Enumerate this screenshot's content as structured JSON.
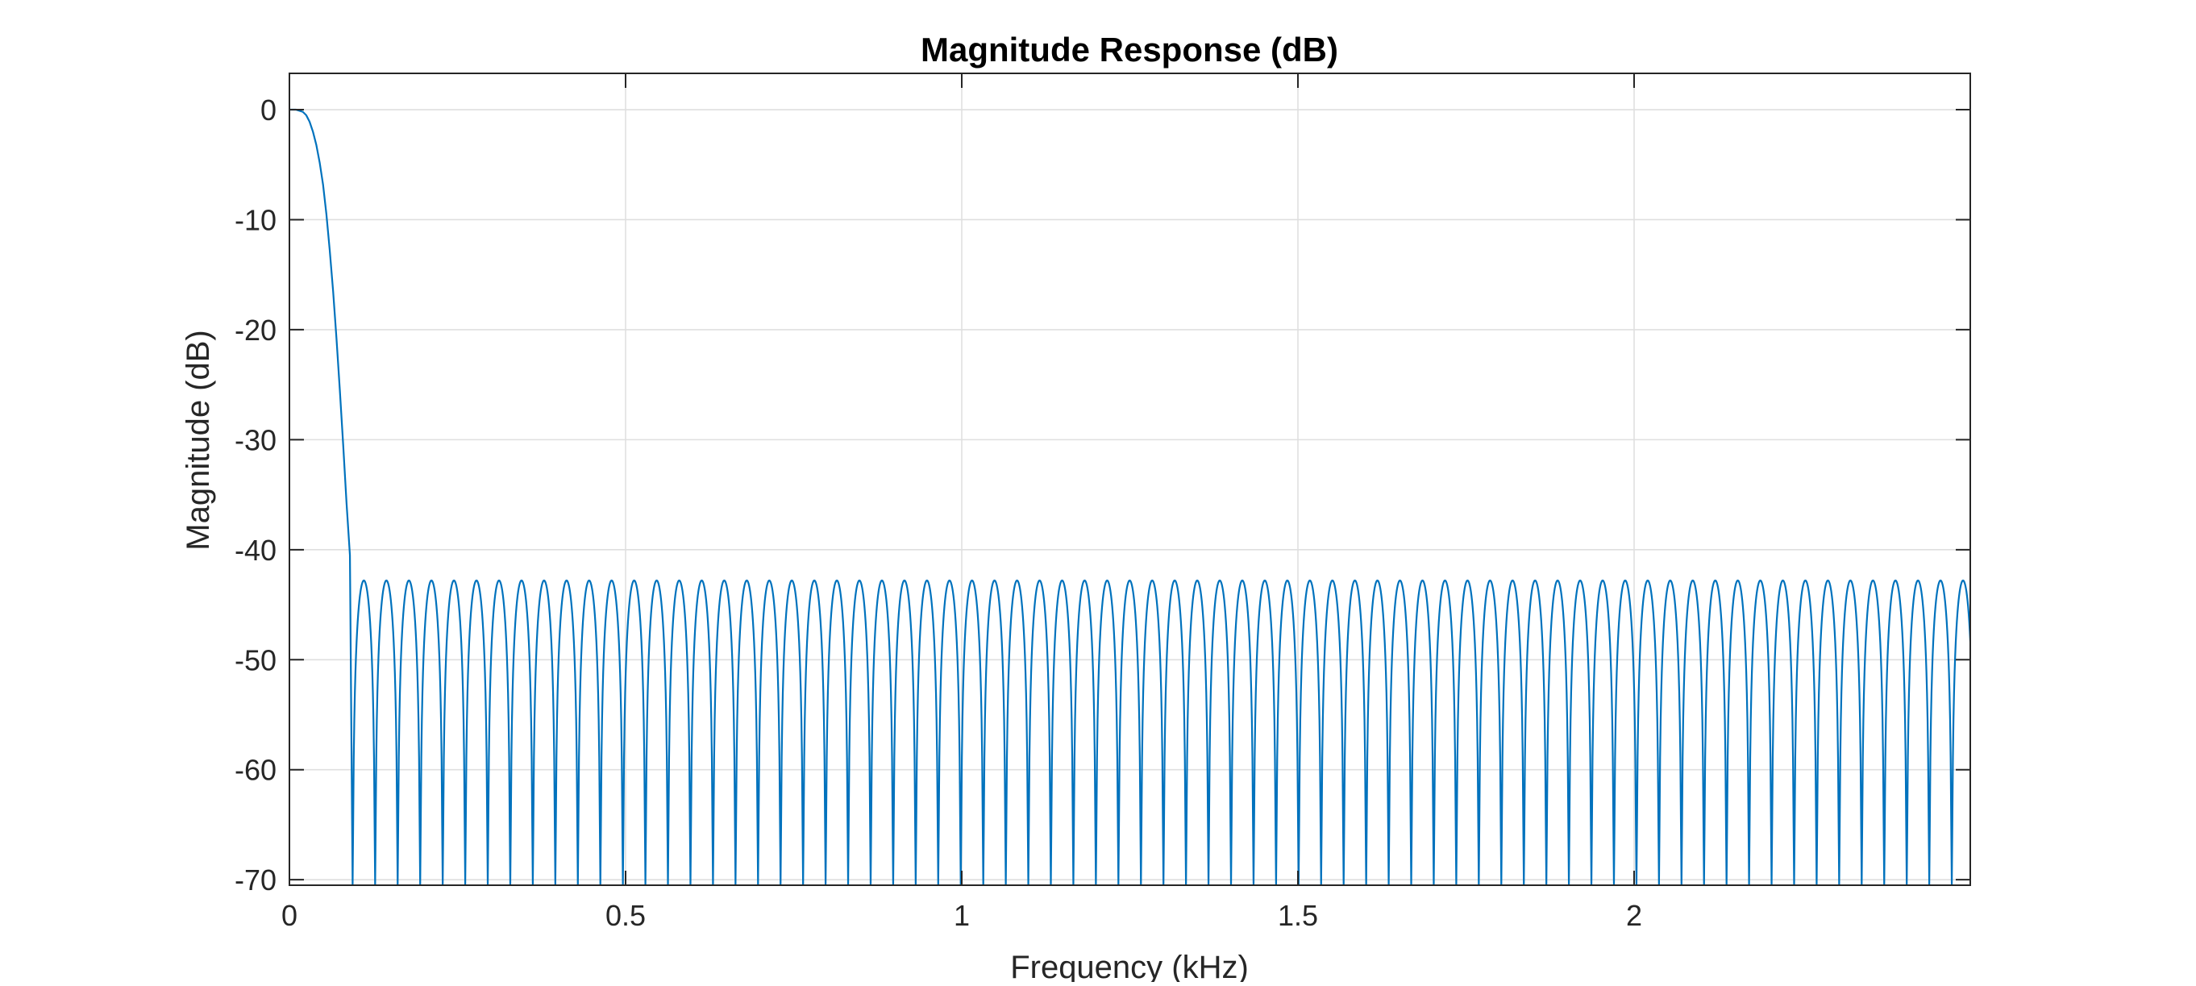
{
  "chart_data": {
    "type": "line",
    "title": "Magnitude Response (dB)",
    "xlabel": "Frequency (kHz)",
    "ylabel": "Magnitude (dB)",
    "xlim": [
      0,
      2.5
    ],
    "ylim": [
      -70.5,
      3.3
    ],
    "xticks": [
      0,
      0.5,
      1,
      1.5,
      2
    ],
    "xtick_labels": [
      "0",
      "0.5",
      "1",
      "1.5",
      "2"
    ],
    "yticks": [
      0,
      -10,
      -20,
      -30,
      -40,
      -50,
      -60,
      -70
    ],
    "ytick_labels": [
      "0",
      "-10",
      "-20",
      "-30",
      "-40",
      "-50",
      "-60",
      "-70"
    ],
    "grid": true,
    "legend": "none",
    "series": [
      {
        "color": "#0072BD",
        "passband": {
          "x": [
            0,
            0.01,
            0.02,
            0.025,
            0.03,
            0.035,
            0.04,
            0.045,
            0.05,
            0.055,
            0.06,
            0.065,
            0.07,
            0.075,
            0.08,
            0.085,
            0.09,
            0.094
          ],
          "y": [
            0,
            0,
            -0.2,
            -0.5,
            -1.1,
            -2.0,
            -3.2,
            -4.8,
            -6.8,
            -9.5,
            -12.8,
            -16.5,
            -20.8,
            -25.5,
            -30.5,
            -35.8,
            -40.5,
            -70.5
          ]
        },
        "stopband": {
          "first_null_khz": 0.094,
          "null_spacing_khz": 0.0335,
          "lobe_peak_db": -42.8,
          "null_floor_db": -70.5,
          "end_khz": 2.5
        }
      }
    ]
  }
}
